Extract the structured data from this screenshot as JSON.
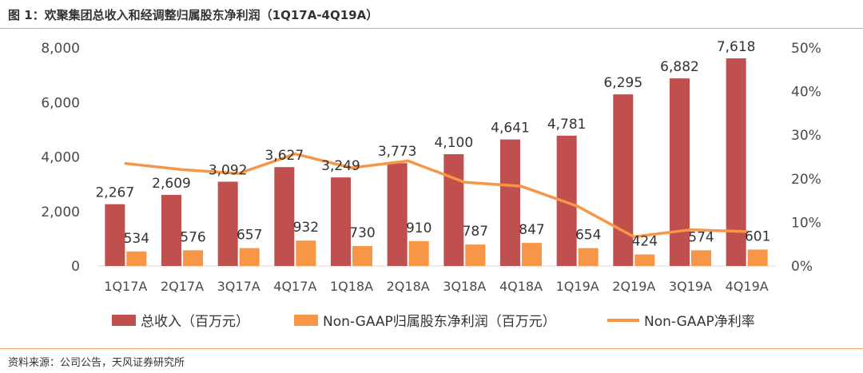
{
  "header": {
    "title": "图 1：欢聚集团总收入和经调整归属股东净利润（1Q17A-4Q19A）"
  },
  "footer": {
    "source": "资料来源：公司公告，天风证券研究所"
  },
  "colors": {
    "revenue": "#c0504d",
    "profit": "#f79646",
    "margin": "#f79646",
    "rule": "#f3a66c"
  },
  "chart_data": {
    "type": "bar",
    "categories": [
      "1Q17A",
      "2Q17A",
      "3Q17A",
      "4Q17A",
      "1Q18A",
      "2Q18A",
      "3Q18A",
      "4Q18A",
      "1Q19A",
      "2Q19A",
      "3Q19A",
      "4Q19A"
    ],
    "series": [
      {
        "name": "总收入（百万元）",
        "type": "bar",
        "axis": "left",
        "color": "#c0504d",
        "values": [
          2267,
          2609,
          3092,
          3627,
          3249,
          3773,
          4100,
          4641,
          4781,
          6295,
          6882,
          7618
        ],
        "labels": [
          "2,267",
          "2,609",
          "3,092",
          "3,627",
          "3,249",
          "3,773",
          "4,100",
          "4,641",
          "4,781",
          "6,295",
          "6,882",
          "7,618"
        ]
      },
      {
        "name": "Non-GAAP归属股东净利润（百万元）",
        "type": "bar",
        "axis": "left",
        "color": "#f79646",
        "values": [
          534,
          576,
          657,
          932,
          730,
          910,
          787,
          847,
          654,
          424,
          574,
          601
        ],
        "labels": [
          "534",
          "576",
          "657",
          "932",
          "730",
          "910",
          "787",
          "847",
          "654",
          "424",
          "574",
          "601"
        ]
      },
      {
        "name": "Non-GAAP净利率",
        "type": "line",
        "axis": "right",
        "color": "#f79646",
        "values": [
          23.5,
          22.1,
          21.2,
          25.7,
          22.5,
          24.1,
          19.2,
          18.3,
          13.7,
          6.7,
          8.3,
          7.9
        ]
      }
    ],
    "y_left": {
      "ylim": [
        0,
        8000
      ],
      "ticks": [
        "0",
        "2,000",
        "4,000",
        "6,000",
        "8,000"
      ]
    },
    "y_right": {
      "ylim": [
        0,
        50
      ],
      "ticks": [
        "0%",
        "10%",
        "20%",
        "30%",
        "40%",
        "50%"
      ]
    },
    "legend": "bottom",
    "grid": false
  }
}
